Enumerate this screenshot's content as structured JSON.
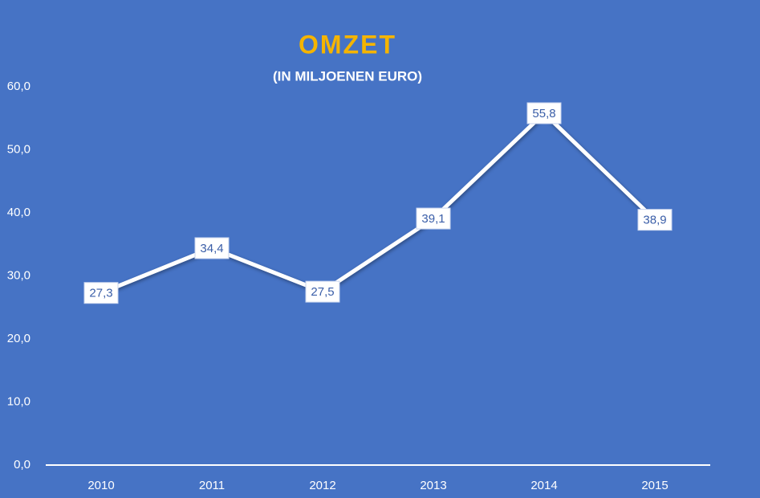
{
  "chart_data": {
    "type": "line",
    "title": "OMZET",
    "subtitle": "(IN MILJOENEN EURO)",
    "categories": [
      "2010",
      "2011",
      "2012",
      "2013",
      "2014",
      "2015"
    ],
    "series": [
      {
        "name": "Omzet",
        "color": "#ffffff",
        "values": [
          27.3,
          34.4,
          27.5,
          39.1,
          55.8,
          38.9
        ],
        "value_labels": [
          "27,3",
          "34,4",
          "27,5",
          "39,1",
          "55,8",
          "38,9"
        ]
      }
    ],
    "ylim": [
      0,
      60
    ],
    "yticks": [
      {
        "value": 0,
        "label": "0,0"
      },
      {
        "value": 10,
        "label": "10,0"
      },
      {
        "value": 20,
        "label": "20,0"
      },
      {
        "value": 30,
        "label": "30,0"
      },
      {
        "value": 40,
        "label": "40,0"
      },
      {
        "value": 50,
        "label": "50,0"
      },
      {
        "value": 60,
        "label": "60,0"
      }
    ],
    "grid": false
  }
}
